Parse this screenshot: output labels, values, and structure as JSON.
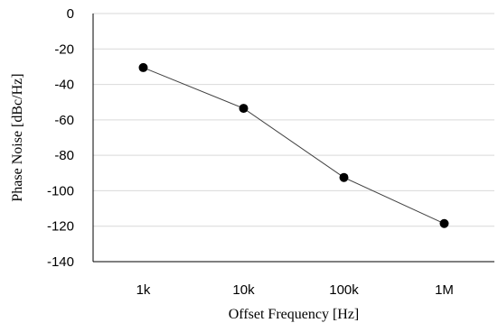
{
  "chart_data": {
    "type": "line",
    "categories": [
      "1k",
      "10k",
      "100k",
      "1M"
    ],
    "series": [
      {
        "values": [
          -30.5,
          -53.5,
          -92.5,
          -118.5
        ]
      }
    ],
    "xlabel": "Offset Frequency [Hz]",
    "ylabel": "Phase Noise [dBc/Hz]",
    "ylim": [
      -140,
      0
    ],
    "yticks": [
      "0",
      "-20",
      "-40",
      "-60",
      "-80",
      "-100",
      "-120",
      "-140"
    ],
    "grid": "horizontal",
    "x_scale": "log",
    "colors": {
      "line": "#404040",
      "marker": "#000000",
      "grid": "#d9d9d9"
    }
  }
}
